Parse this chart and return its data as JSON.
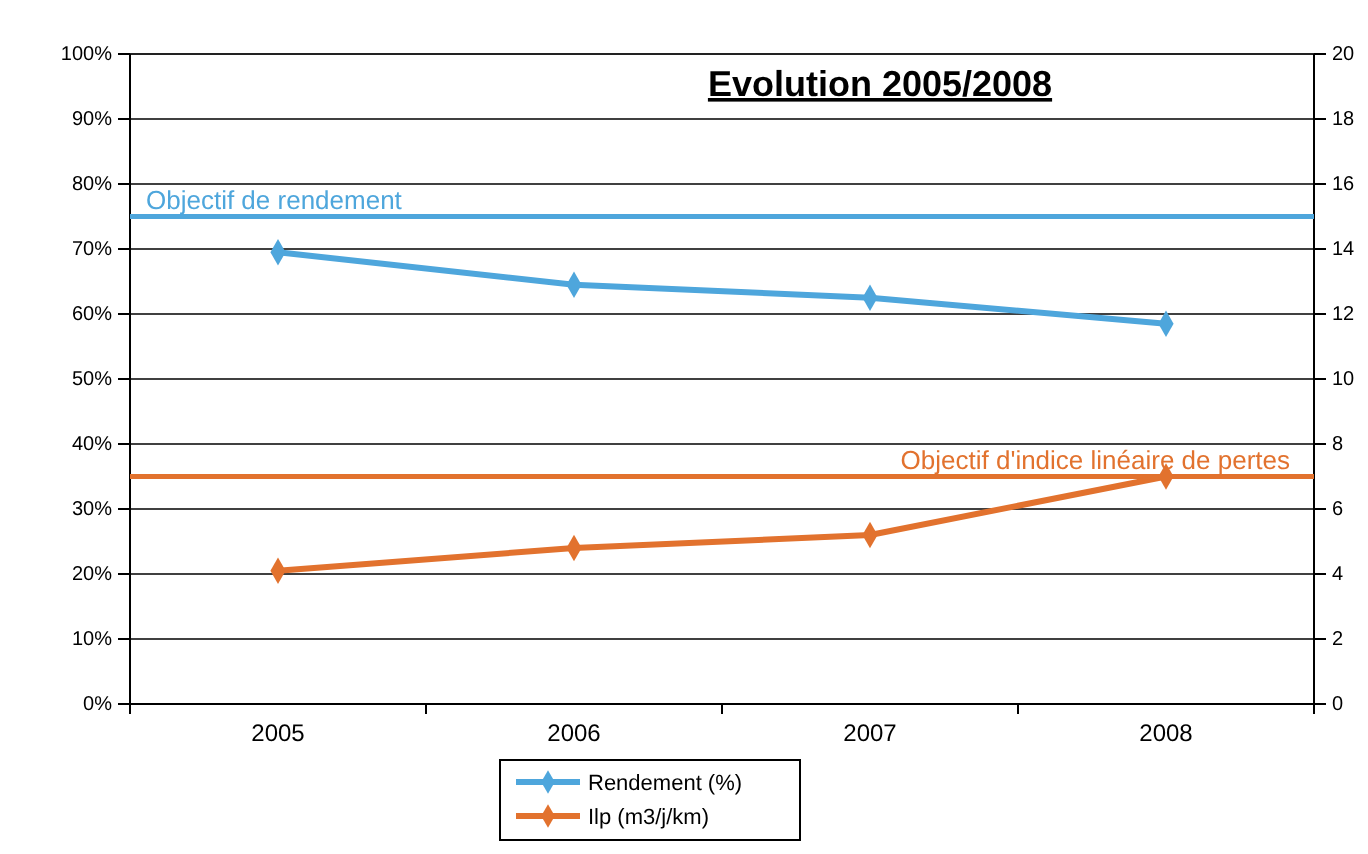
{
  "chart_data": {
    "type": "line",
    "title": "Evolution 2005/2008",
    "categories": [
      "2005",
      "2006",
      "2007",
      "2008"
    ],
    "series": [
      {
        "name": "Rendement (%)",
        "color": "#4ea6dc",
        "values": [
          69.5,
          64.5,
          62.5,
          58.5
        ]
      },
      {
        "name": "Ilp (m3/j/km)",
        "color": "#e2722e",
        "values": [
          4.1,
          4.8,
          5.2,
          7.0
        ],
        "axis": "y2"
      }
    ],
    "ylim": [
      0,
      100
    ],
    "yticks": [
      {
        "value": 0,
        "label": "0%"
      },
      {
        "value": 10,
        "label": "10%"
      },
      {
        "value": 20,
        "label": "20%"
      },
      {
        "value": 30,
        "label": "30%"
      },
      {
        "value": 40,
        "label": "40%"
      },
      {
        "value": 50,
        "label": "50%"
      },
      {
        "value": 60,
        "label": "60%"
      },
      {
        "value": 70,
        "label": "70%"
      },
      {
        "value": 80,
        "label": "80%"
      },
      {
        "value": 90,
        "label": "90%"
      },
      {
        "value": 100,
        "label": "100%"
      }
    ],
    "y2lim": [
      0,
      20
    ],
    "y2ticks": [
      0,
      2,
      4,
      6,
      8,
      10,
      12,
      14,
      16,
      18,
      20
    ],
    "ref_lines": [
      {
        "axis": "y",
        "value": 75,
        "label": "Objectif de rendement",
        "color": "#4ea6dc"
      },
      {
        "axis": "y2",
        "value": 7,
        "label": "Objectif d'indice linéaire de pertes",
        "color": "#e2722e"
      }
    ],
    "grid": "y",
    "legend": "bottom",
    "marker": "diamond",
    "line_style": "solid"
  }
}
